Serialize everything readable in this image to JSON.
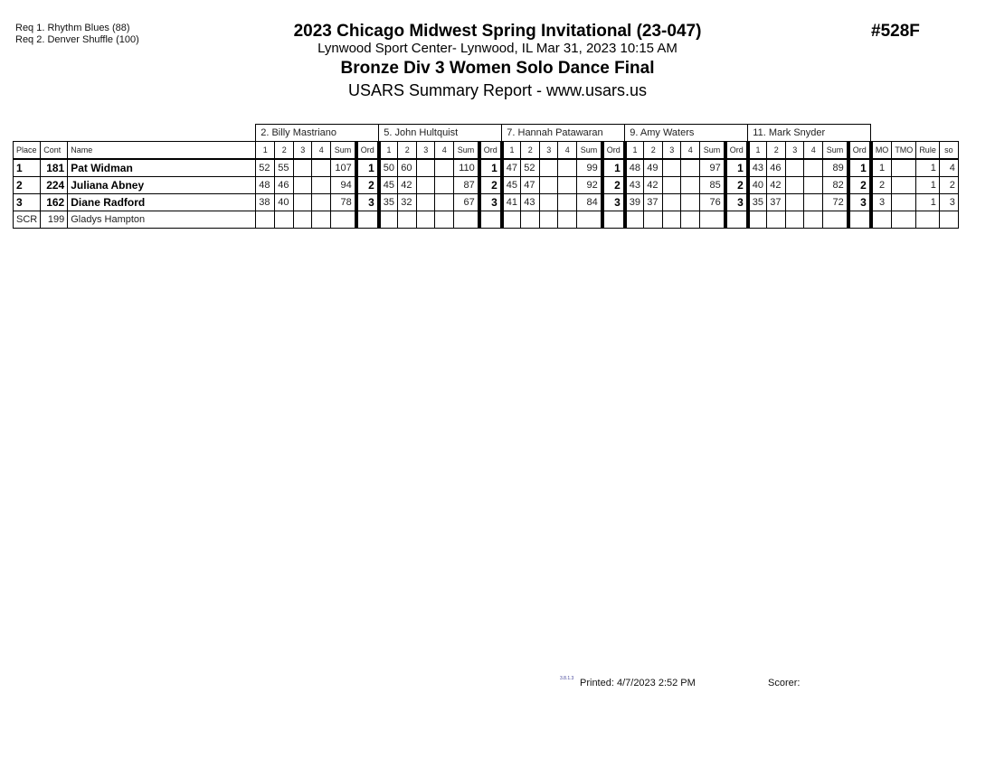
{
  "requirements": [
    "Req  1.  Rhythm Blues (88)",
    "Req  2.  Denver Shuffle (100)"
  ],
  "header": {
    "title": "2023 Chicago Midwest Spring Invitational (23-047)",
    "venue": "Lynwood Sport Center- Lynwood, IL  Mar 31, 2023  10:15 AM",
    "event": "Bronze Div 3  Women Solo Dance Final",
    "report": "USARS Summary Report - www.usars.us",
    "event_number": "#528F"
  },
  "table": {
    "headers": {
      "place": "Place",
      "cont": "Cont",
      "name": "Name",
      "judge_cols": [
        "1",
        "2",
        "3",
        "4",
        "Sum",
        "Ord"
      ],
      "tail": [
        "MO",
        "TMO",
        "Rule",
        "so"
      ]
    },
    "judges": [
      "2.  Billy Mastriano",
      "5.  John Hultquist",
      "7.  Hannah Patawaran",
      "9.  Amy Waters",
      "11.  Mark  Snyder"
    ],
    "rows": [
      {
        "place": "1",
        "cont": "181",
        "name": "Pat Widman",
        "bold": true,
        "scores": [
          [
            "52",
            "55",
            "",
            "",
            "107",
            "1"
          ],
          [
            "50",
            "60",
            "",
            "",
            "110",
            "1"
          ],
          [
            "47",
            "52",
            "",
            "",
            "99",
            "1"
          ],
          [
            "48",
            "49",
            "",
            "",
            "97",
            "1"
          ],
          [
            "43",
            "46",
            "",
            "",
            "89",
            "1"
          ]
        ],
        "tail": [
          "1",
          "",
          "1",
          "4"
        ]
      },
      {
        "place": "2",
        "cont": "224",
        "name": "Juliana Abney",
        "bold": true,
        "scores": [
          [
            "48",
            "46",
            "",
            "",
            "94",
            "2"
          ],
          [
            "45",
            "42",
            "",
            "",
            "87",
            "2"
          ],
          [
            "45",
            "47",
            "",
            "",
            "92",
            "2"
          ],
          [
            "43",
            "42",
            "",
            "",
            "85",
            "2"
          ],
          [
            "40",
            "42",
            "",
            "",
            "82",
            "2"
          ]
        ],
        "tail": [
          "2",
          "",
          "1",
          "2"
        ]
      },
      {
        "place": "3",
        "cont": "162",
        "name": "Diane Radford",
        "bold": true,
        "scores": [
          [
            "38",
            "40",
            "",
            "",
            "78",
            "3"
          ],
          [
            "35",
            "32",
            "",
            "",
            "67",
            "3"
          ],
          [
            "41",
            "43",
            "",
            "",
            "84",
            "3"
          ],
          [
            "39",
            "37",
            "",
            "",
            "76",
            "3"
          ],
          [
            "35",
            "37",
            "",
            "",
            "72",
            "3"
          ]
        ],
        "tail": [
          "3",
          "",
          "1",
          "3"
        ]
      },
      {
        "place": "SCR",
        "cont": "199",
        "name": "Gladys Hampton",
        "bold": false,
        "scores": [
          [
            "",
            "",
            "",
            "",
            "",
            ""
          ],
          [
            "",
            "",
            "",
            "",
            "",
            ""
          ],
          [
            "",
            "",
            "",
            "",
            "",
            ""
          ],
          [
            "",
            "",
            "",
            "",
            "",
            ""
          ],
          [
            "",
            "",
            "",
            "",
            "",
            ""
          ]
        ],
        "tail": [
          "",
          "",
          "",
          ""
        ]
      }
    ]
  },
  "footer": {
    "version": "3.8.1.3",
    "printed": "Printed:  4/7/2023  2:52 PM",
    "scorer": "Scorer:"
  }
}
